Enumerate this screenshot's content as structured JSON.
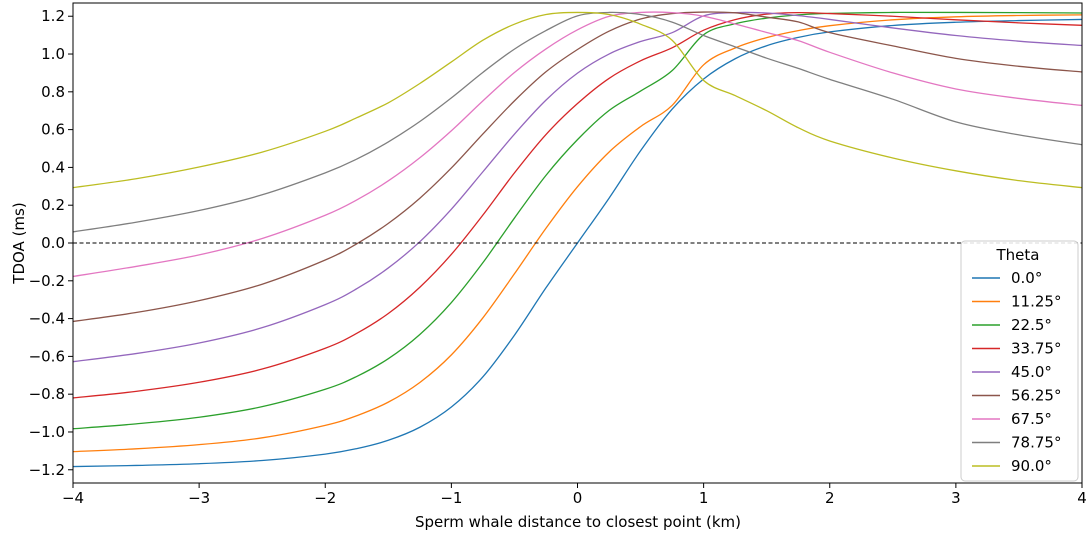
{
  "chart_data": {
    "type": "line",
    "title": "",
    "xlabel": "Sperm whale distance to closest point (km)",
    "ylabel": "TDOA (ms)",
    "xlim": [
      -4,
      4
    ],
    "ylim": [
      -1.27,
      1.27
    ],
    "xticks": [
      -4,
      -3,
      -2,
      -1,
      0,
      1,
      2,
      3,
      4
    ],
    "xtick_labels": [
      "−4",
      "−3",
      "−2",
      "−1",
      "0",
      "1",
      "2",
      "3",
      "4"
    ],
    "yticks": [
      1.2,
      1.0,
      0.8,
      0.6,
      0.4,
      0.2,
      0.0,
      -0.2,
      -0.4,
      -0.6,
      -0.8,
      -1.0,
      -1.2
    ],
    "ytick_labels": [
      "1.2",
      "1.0",
      "0.8",
      "0.6",
      "0.4",
      "0.2",
      "0.0",
      "−0.2",
      "−0.4",
      "−0.6",
      "−0.8",
      "−1.0",
      "−1.2"
    ],
    "grid": false,
    "reference_line": {
      "y": 0.0,
      "style": "dashed",
      "color": "#000000"
    },
    "legend": {
      "title": "Theta",
      "placement": "lower-right"
    },
    "x": [
      -4.0,
      -3.5,
      -3.0,
      -2.5,
      -2.0,
      -1.75,
      -1.5,
      -1.25,
      -1.0,
      -0.75,
      -0.5,
      -0.25,
      0.0,
      0.25,
      0.5,
      0.75,
      1.0,
      1.25,
      1.5,
      1.75,
      2.0,
      2.5,
      3.0,
      3.5,
      4.0
    ],
    "series": [
      {
        "name": "0.0°",
        "color": "#1f77b4",
        "values": [
          -1.183,
          -1.177,
          -1.168,
          -1.151,
          -1.117,
          -1.088,
          -1.044,
          -0.975,
          -0.868,
          -0.708,
          -0.488,
          -0.237,
          0.0,
          0.237,
          0.488,
          0.708,
          0.868,
          0.975,
          1.044,
          1.088,
          1.117,
          1.151,
          1.168,
          1.177,
          1.183
        ]
      },
      {
        "name": "11.25°",
        "color": "#ff7f0e",
        "values": [
          -1.104,
          -1.089,
          -1.067,
          -1.031,
          -0.965,
          -0.914,
          -0.842,
          -0.738,
          -0.592,
          -0.396,
          -0.163,
          0.078,
          0.298,
          0.481,
          0.616,
          0.728,
          0.943,
          1.032,
          1.087,
          1.124,
          1.15,
          1.181,
          1.197,
          1.204,
          1.207
        ]
      },
      {
        "name": "22.5°",
        "color": "#2ca02c",
        "values": [
          -0.983,
          -0.957,
          -0.922,
          -0.866,
          -0.774,
          -0.706,
          -0.612,
          -0.484,
          -0.315,
          -0.104,
          0.132,
          0.358,
          0.547,
          0.701,
          0.804,
          0.912,
          1.102,
          1.16,
          1.19,
          1.207,
          1.215,
          1.22,
          1.22,
          1.219,
          1.217
        ]
      },
      {
        "name": "33.75°",
        "color": "#d62728",
        "values": [
          -0.82,
          -0.785,
          -0.737,
          -0.667,
          -0.557,
          -0.478,
          -0.373,
          -0.234,
          -0.06,
          0.148,
          0.371,
          0.574,
          0.738,
          0.871,
          0.964,
          1.033,
          1.126,
          1.182,
          1.211,
          1.219,
          1.214,
          1.2,
          1.181,
          1.165,
          1.152
        ]
      },
      {
        "name": "45.0°",
        "color": "#9467bd",
        "values": [
          -0.628,
          -0.585,
          -0.529,
          -0.448,
          -0.326,
          -0.242,
          -0.132,
          0.007,
          0.179,
          0.377,
          0.576,
          0.756,
          0.899,
          1.0,
          1.066,
          1.113,
          1.202,
          1.219,
          1.217,
          1.203,
          1.183,
          1.138,
          1.098,
          1.068,
          1.045
        ]
      },
      {
        "name": "56.25°",
        "color": "#8c564b",
        "values": [
          -0.415,
          -0.368,
          -0.305,
          -0.218,
          -0.09,
          -0.004,
          0.104,
          0.237,
          0.397,
          0.577,
          0.752,
          0.906,
          1.024,
          1.121,
          1.185,
          1.214,
          1.222,
          1.218,
          1.195,
          1.17,
          1.113,
          1.043,
          0.977,
          0.935,
          0.905
        ]
      },
      {
        "name": "67.5°",
        "color": "#e377c2",
        "values": [
          -0.177,
          -0.124,
          -0.063,
          0.024,
          0.147,
          0.228,
          0.329,
          0.451,
          0.594,
          0.752,
          0.902,
          1.027,
          1.128,
          1.199,
          1.22,
          1.219,
          1.2,
          1.159,
          1.114,
          1.071,
          1.009,
          0.9,
          0.815,
          0.765,
          0.728
        ]
      },
      {
        "name": "78.75°",
        "color": "#7f7f7f",
        "values": [
          0.059,
          0.11,
          0.172,
          0.255,
          0.371,
          0.444,
          0.535,
          0.643,
          0.768,
          0.903,
          1.026,
          1.124,
          1.202,
          1.22,
          1.209,
          1.169,
          1.098,
          1.038,
          0.978,
          0.924,
          0.866,
          0.761,
          0.641,
          0.572,
          0.52
        ]
      },
      {
        "name": "90.0°",
        "color": "#bcbd22",
        "values": [
          0.293,
          0.34,
          0.402,
          0.481,
          0.591,
          0.663,
          0.742,
          0.844,
          0.958,
          1.073,
          1.158,
          1.209,
          1.22,
          1.209,
          1.158,
          1.073,
          0.86,
          0.78,
          0.7,
          0.61,
          0.54,
          0.45,
          0.382,
          0.33,
          0.293
        ]
      }
    ]
  }
}
